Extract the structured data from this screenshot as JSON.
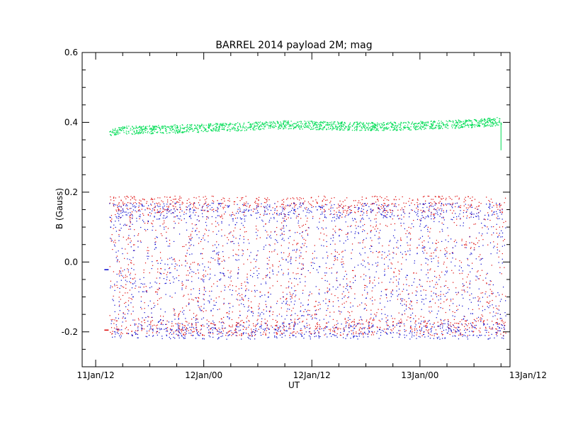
{
  "chart_data": {
    "type": "scatter",
    "title": "BARREL 2014 payload 2M; mag",
    "xlabel": "UT",
    "ylabel": "B (Gauss)",
    "x_unit": "hours (UT)",
    "xlim": [
      10.5,
      58.0
    ],
    "ylim": [
      -0.3,
      0.6
    ],
    "x_tick_labels": [
      {
        "x": 12,
        "label": "11Jan/12"
      },
      {
        "x": 24,
        "label": "12Jan/00"
      },
      {
        "x": 36,
        "label": "12Jan/12"
      },
      {
        "x": 48,
        "label": "13Jan/00"
      },
      {
        "x": 60,
        "label": "13Jan/12"
      }
    ],
    "y_tick_labels": [
      {
        "y": -0.2,
        "label": "-0.2"
      },
      {
        "y": 0.0,
        "label": "0.0"
      },
      {
        "y": 0.2,
        "label": "0.2"
      },
      {
        "y": 0.4,
        "label": "0.4"
      },
      {
        "y": 0.6,
        "label": "0.6"
      }
    ],
    "x_tick_labels_data_positions_note": "",
    "grid": false,
    "legend": "none",
    "series": [
      {
        "color": "#00dd55",
        "style": "dense points",
        "x": [
          13.5,
          15,
          17,
          19,
          21,
          23,
          25,
          27,
          29,
          31,
          33,
          35,
          37,
          39,
          41,
          43,
          45,
          47,
          49,
          51,
          53,
          55,
          57.0
        ],
        "y": [
          0.375,
          0.378,
          0.38,
          0.381,
          0.382,
          0.384,
          0.386,
          0.388,
          0.39,
          0.392,
          0.394,
          0.393,
          0.392,
          0.391,
          0.39,
          0.389,
          0.39,
          0.391,
          0.393,
          0.395,
          0.397,
          0.4,
          0.405
        ],
        "band_half_width": 0.012
      },
      {
        "color": "#dd0000",
        "style": "scattered points",
        "x_range": [
          13.5,
          57.5
        ],
        "y_range": [
          -0.21,
          0.19
        ]
      },
      {
        "color": "#0000cc",
        "style": "scattered points",
        "x_range": [
          13.5,
          57.5
        ],
        "y_range": [
          -0.22,
          0.17
        ]
      }
    ],
    "annotations": [
      {
        "color": "#dd0000",
        "x": 13.2,
        "y": -0.195,
        "mark": "short dash"
      },
      {
        "color": "#0000cc",
        "x": 13.2,
        "y": -0.022,
        "mark": "short dash"
      },
      {
        "color": "#00dd55",
        "x": 57.0,
        "y_from": 0.4,
        "y_to": 0.32,
        "mark": "drop at end"
      }
    ]
  }
}
